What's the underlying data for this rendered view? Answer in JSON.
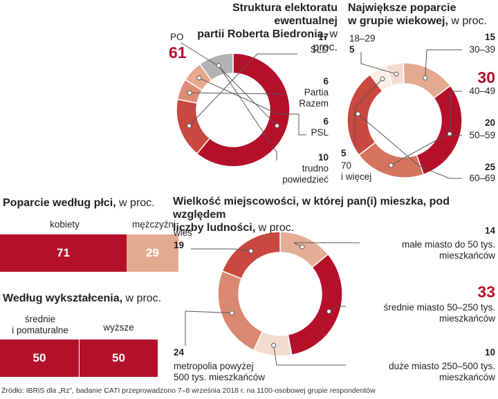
{
  "colors": {
    "accent": "#b5102a",
    "donut_a": [
      "#b5102a",
      "#c9483f",
      "#de8c75",
      "#e9a78e",
      "#b2b2b2"
    ],
    "donut_b": [
      "#f6dccf",
      "#e3aa90",
      "#b5102a",
      "#d5735e",
      "#c9483f",
      "#fbeee6"
    ],
    "donut_c": [
      "#e4ae96",
      "#b5102a",
      "#f3ddd0",
      "#d98872",
      "#c9483f"
    ],
    "bar_women": "#b5102a",
    "bar_men": "#e3aa90"
  },
  "titles": {
    "electorate_1": "Struktura elektoratu ewentualnej",
    "electorate_2": "partii Roberta Biedronia,",
    "age_1": "Największe poparcie",
    "age_2": "w grupie wiekowej,",
    "gender": "Poparcie według płci,",
    "education": "Według wykształcenia,",
    "town_1": "Wielkość miejscowości, w której pan(i) mieszka, pod względem",
    "town_2": "liczby ludności,",
    "unit": "w proc."
  },
  "chart_data": [
    {
      "type": "pie",
      "title": "Struktura elektoratu ewentualnej partii Roberta Biedronia, w proc.",
      "slices": [
        {
          "label": "PO",
          "value": 61
        },
        {
          "label": "SLD",
          "value": 17
        },
        {
          "label": "Partia Razem",
          "value": 6
        },
        {
          "label": "PSL",
          "value": 6
        },
        {
          "label": "trudno powiedzieć",
          "value": 10
        }
      ]
    },
    {
      "type": "pie",
      "title": "Największe poparcie w grupie wiekowej, w proc.",
      "slices": [
        {
          "label": "18–29",
          "value": 5
        },
        {
          "label": "30–39",
          "value": 15
        },
        {
          "label": "40–49",
          "value": 30
        },
        {
          "label": "50–59",
          "value": 20
        },
        {
          "label": "60–69",
          "value": 25
        },
        {
          "label": "70 i więcej",
          "value": 5
        }
      ]
    },
    {
      "type": "bar",
      "title": "Poparcie według płci, w proc.",
      "categories": [
        "kobiety",
        "mężczyźni"
      ],
      "values": [
        71,
        29
      ]
    },
    {
      "type": "bar",
      "title": "Według wykształcenia, w proc.",
      "categories": [
        "średnie i pomaturalne",
        "wyższe"
      ],
      "values": [
        50,
        50
      ]
    },
    {
      "type": "pie",
      "title": "Wielkość miejscowości, w której pan(i) mieszka, pod względem liczby ludności, w proc.",
      "slices": [
        {
          "label": "małe miasto do 50 tys. mieszkańców",
          "value": 14
        },
        {
          "label": "średnie miasto 50–250 tys. mieszkańców",
          "value": 33
        },
        {
          "label": "duże miasto 250–500 tys. mieszkańców",
          "value": 10
        },
        {
          "label": "metropolia powyżej 500 tys. mieszkańców",
          "value": 24
        },
        {
          "label": "wieś",
          "value": 19
        }
      ]
    }
  ],
  "labels": {
    "a": {
      "po": "PO",
      "po_val": "61",
      "sld": "SLD",
      "sld_val": "17",
      "razem_1": "Partia",
      "razem_2": "Razem",
      "razem_val": "6",
      "psl": "PSL",
      "psl_val": "6",
      "trudno_1": "trudno",
      "trudno_2": "powiedzieć",
      "trudno_val": "10"
    },
    "b": {
      "a1829": "18–29",
      "a1829_val": "5",
      "a3039": "30–39",
      "a3039_val": "15",
      "a4049": "40–49",
      "a4049_val": "30",
      "a5059": "50–59",
      "a5059_val": "20",
      "a6069": "60–69",
      "a6069_val": "25",
      "a70_1": "70",
      "a70_2": "i więcej",
      "a70_val": "5"
    },
    "c": {
      "wies": "wieś",
      "wies_val": "19",
      "male_1": "małe miasto do 50 tys.",
      "male_2": "mieszkańców",
      "male_val": "14",
      "srednie_1": "średnie miasto 50–250 tys.",
      "srednie_2": "mieszkańców",
      "srednie_val": "33",
      "duze_1": "duże miasto 250–500 tys.",
      "duze_2": "mieszkańców",
      "duze_val": "10",
      "metro_1": "metropolia powyżej",
      "metro_2": "500 tys. mieszkańców",
      "metro_val": "24"
    },
    "gender": {
      "women": "kobiety",
      "men": "mężczyźni",
      "women_val": "71",
      "men_val": "29"
    },
    "education": {
      "secondary_1": "średnie",
      "secondary_2": "i pomaturalne",
      "higher": "wyższe",
      "secondary_val": "50",
      "higher_val": "50"
    }
  },
  "source": "Źródło: IBRiS dla „Rz”, badanie CATI przeprowadzono 7–8 września 2018 r. na 1100-osobowej grupie respondentów"
}
